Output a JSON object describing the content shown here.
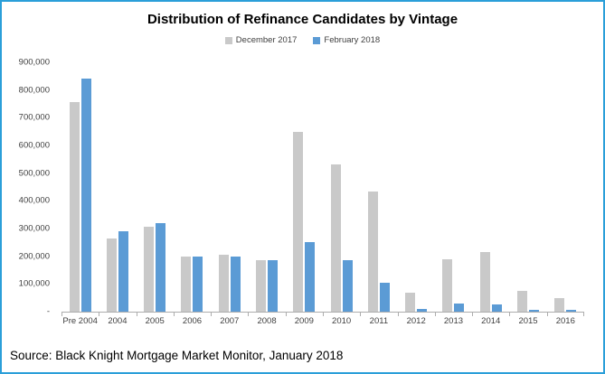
{
  "source_line": "Source: Black Knight Mortgage Market Monitor, January 2018",
  "style": {
    "frame_border_color": "#2B9FD9",
    "axis_color": "#ADADAD",
    "label_color": "#3F3F3F"
  },
  "chart_data": {
    "type": "bar",
    "title": "Distribution of Refinance Candidates by Vintage",
    "xlabel": "",
    "ylabel": "",
    "grid": false,
    "legend_position": "top",
    "ylim": [
      0,
      900000
    ],
    "ytick_step": 100000,
    "yticks": [
      {
        "value": 0,
        "label": "-"
      },
      {
        "value": 100000,
        "label": "100,000"
      },
      {
        "value": 200000,
        "label": "200,000"
      },
      {
        "value": 300000,
        "label": "300,000"
      },
      {
        "value": 400000,
        "label": "400,000"
      },
      {
        "value": 500000,
        "label": "500,000"
      },
      {
        "value": 600000,
        "label": "600,000"
      },
      {
        "value": 700000,
        "label": "700,000"
      },
      {
        "value": 800000,
        "label": "800,000"
      },
      {
        "value": 900000,
        "label": "900,000"
      }
    ],
    "categories": [
      "Pre 2004",
      "2004",
      "2005",
      "2006",
      "2007",
      "2008",
      "2009",
      "2010",
      "2011",
      "2012",
      "2013",
      "2014",
      "2015",
      "2016"
    ],
    "series": [
      {
        "name": "December 2017",
        "color": "#C9C9C9",
        "values": [
          755000,
          265000,
          305000,
          200000,
          205000,
          185000,
          650000,
          530000,
          435000,
          70000,
          190000,
          215000,
          75000,
          50000
        ]
      },
      {
        "name": "February 2018",
        "color": "#5B9BD5",
        "values": [
          840000,
          290000,
          320000,
          200000,
          200000,
          185000,
          250000,
          185000,
          105000,
          10000,
          30000,
          25000,
          5000,
          5000
        ]
      }
    ]
  }
}
